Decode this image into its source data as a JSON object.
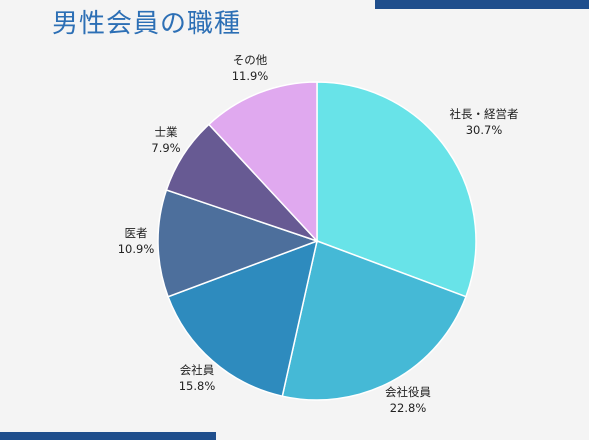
{
  "title": "男性会員の職種",
  "colors": {
    "accent_bar": "#1f4e8c",
    "title_text": "#2c6fb5",
    "background": "#f4f4f4"
  },
  "chart_data": {
    "type": "pie",
    "title": "男性会員の職種",
    "start_angle_deg": 0,
    "direction": "clockwise",
    "slices": [
      {
        "label": "社長・経営者",
        "value": 30.7,
        "value_label": "30.7%",
        "color": "#68e3e8"
      },
      {
        "label": "会社役員",
        "value": 22.8,
        "value_label": "22.8%",
        "color": "#45b9d6"
      },
      {
        "label": "会社員",
        "value": 15.8,
        "value_label": "15.8%",
        "color": "#2e8bbe"
      },
      {
        "label": "医者",
        "value": 10.9,
        "value_label": "10.9%",
        "color": "#4d6f9c"
      },
      {
        "label": "士業",
        "value": 7.9,
        "value_label": "7.9%",
        "color": "#675a93"
      },
      {
        "label": "その他",
        "value": 11.9,
        "value_label": "11.9%",
        "color": "#e0a9ef"
      }
    ]
  }
}
